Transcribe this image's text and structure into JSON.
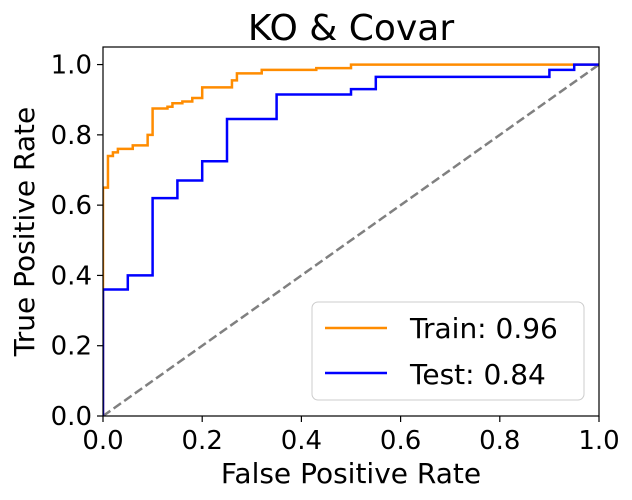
{
  "chart_data": {
    "type": "line",
    "title": "KO & Covar",
    "xlabel": "False Positive Rate",
    "ylabel": "True Positive Rate",
    "xlim": [
      0.0,
      1.0
    ],
    "ylim": [
      0.0,
      1.05
    ],
    "xticks": [
      "0.0",
      "0.2",
      "0.4",
      "0.6",
      "0.8",
      "1.0"
    ],
    "yticks": [
      "0.0",
      "0.2",
      "0.4",
      "0.6",
      "0.8",
      "1.0"
    ],
    "grid": false,
    "legend_position": "lower-right",
    "series": [
      {
        "name": "Train: 0.96",
        "color": "#ff8c00",
        "x": [
          0.0,
          0.0,
          0.01,
          0.01,
          0.02,
          0.02,
          0.03,
          0.03,
          0.06,
          0.06,
          0.09,
          0.09,
          0.1,
          0.1,
          0.13,
          0.13,
          0.14,
          0.14,
          0.16,
          0.16,
          0.18,
          0.18,
          0.2,
          0.2,
          0.26,
          0.26,
          0.27,
          0.27,
          0.32,
          0.32,
          0.43,
          0.43,
          0.5,
          0.5,
          0.95,
          0.95,
          1.0
        ],
        "y": [
          0.0,
          0.65,
          0.65,
          0.74,
          0.74,
          0.75,
          0.75,
          0.76,
          0.76,
          0.77,
          0.77,
          0.8,
          0.8,
          0.875,
          0.875,
          0.88,
          0.88,
          0.89,
          0.89,
          0.895,
          0.895,
          0.905,
          0.905,
          0.935,
          0.935,
          0.955,
          0.955,
          0.975,
          0.975,
          0.985,
          0.985,
          0.99,
          0.99,
          1.0,
          1.0,
          1.0,
          1.0
        ]
      },
      {
        "name": "Test: 0.84",
        "color": "#0000ff",
        "x": [
          0.0,
          0.0,
          0.05,
          0.05,
          0.1,
          0.1,
          0.15,
          0.15,
          0.2,
          0.2,
          0.25,
          0.25,
          0.35,
          0.35,
          0.5,
          0.5,
          0.55,
          0.55,
          0.9,
          0.9,
          0.95,
          0.95,
          1.0
        ],
        "y": [
          0.0,
          0.36,
          0.36,
          0.4,
          0.4,
          0.62,
          0.62,
          0.67,
          0.67,
          0.725,
          0.725,
          0.845,
          0.845,
          0.915,
          0.915,
          0.93,
          0.93,
          0.965,
          0.965,
          0.985,
          0.985,
          1.0,
          1.0
        ]
      },
      {
        "color": "#808080",
        "dashed": true,
        "x": [
          0.0,
          1.0
        ],
        "y": [
          0.0,
          1.0
        ]
      }
    ]
  }
}
